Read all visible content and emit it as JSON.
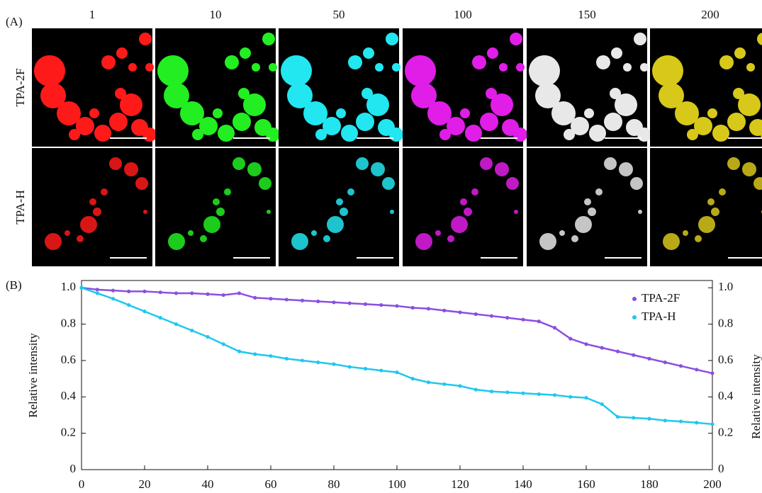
{
  "panel_a": {
    "label": "(A)",
    "columns": [
      "1",
      "10",
      "50",
      "100",
      "150",
      "200"
    ],
    "rows": [
      "TPA-2F",
      "TPA-H"
    ],
    "colors": [
      "#ff1a1a",
      "#22ee22",
      "#22e6f0",
      "#e01ee8",
      "#e8e8e8",
      "#d8c81a"
    ]
  },
  "chart_data": {
    "type": "scatter",
    "panel_label": "(B)",
    "ylabel": "Relative intensity",
    "y2label": "Relative intensity",
    "x": [
      0,
      5,
      10,
      15,
      20,
      25,
      30,
      35,
      40,
      45,
      50,
      55,
      60,
      65,
      70,
      75,
      80,
      85,
      90,
      95,
      100,
      105,
      110,
      115,
      120,
      125,
      130,
      135,
      140,
      145,
      150,
      155,
      160,
      165,
      170,
      175,
      180,
      185,
      190,
      195,
      200
    ],
    "series": [
      {
        "name": "TPA-2F",
        "color": "#8a4fe0",
        "values": [
          1.0,
          0.99,
          0.985,
          0.98,
          0.98,
          0.975,
          0.97,
          0.97,
          0.965,
          0.96,
          0.97,
          0.945,
          0.94,
          0.935,
          0.93,
          0.925,
          0.92,
          0.915,
          0.91,
          0.905,
          0.9,
          0.89,
          0.885,
          0.875,
          0.865,
          0.855,
          0.845,
          0.835,
          0.825,
          0.815,
          0.78,
          0.72,
          0.69,
          0.67,
          0.65,
          0.63,
          0.61,
          0.59,
          0.57,
          0.55,
          0.53
        ]
      },
      {
        "name": "TPA-H",
        "color": "#1ec8ee",
        "values": [
          1.0,
          0.97,
          0.94,
          0.905,
          0.87,
          0.835,
          0.8,
          0.765,
          0.73,
          0.69,
          0.65,
          0.635,
          0.625,
          0.61,
          0.6,
          0.59,
          0.58,
          0.565,
          0.555,
          0.545,
          0.535,
          0.5,
          0.48,
          0.47,
          0.46,
          0.44,
          0.43,
          0.425,
          0.42,
          0.415,
          0.41,
          0.4,
          0.395,
          0.36,
          0.29,
          0.285,
          0.28,
          0.27,
          0.265,
          0.258,
          0.25
        ]
      }
    ],
    "xlim": [
      0,
      200
    ],
    "xticks": [
      0,
      20,
      40,
      60,
      80,
      100,
      120,
      140,
      160,
      180,
      200
    ],
    "ylim": [
      0,
      1.04
    ],
    "yticks": [
      0,
      0.2,
      0.4,
      0.6,
      0.8,
      {
        "value": 1,
        "label": "1.0"
      }
    ],
    "y2lim": [
      0,
      1.04
    ],
    "y2ticks": [
      0,
      0.2,
      0.4,
      0.6,
      0.8,
      {
        "value": 1,
        "label": "1.0"
      }
    ],
    "legend": "upper right"
  }
}
